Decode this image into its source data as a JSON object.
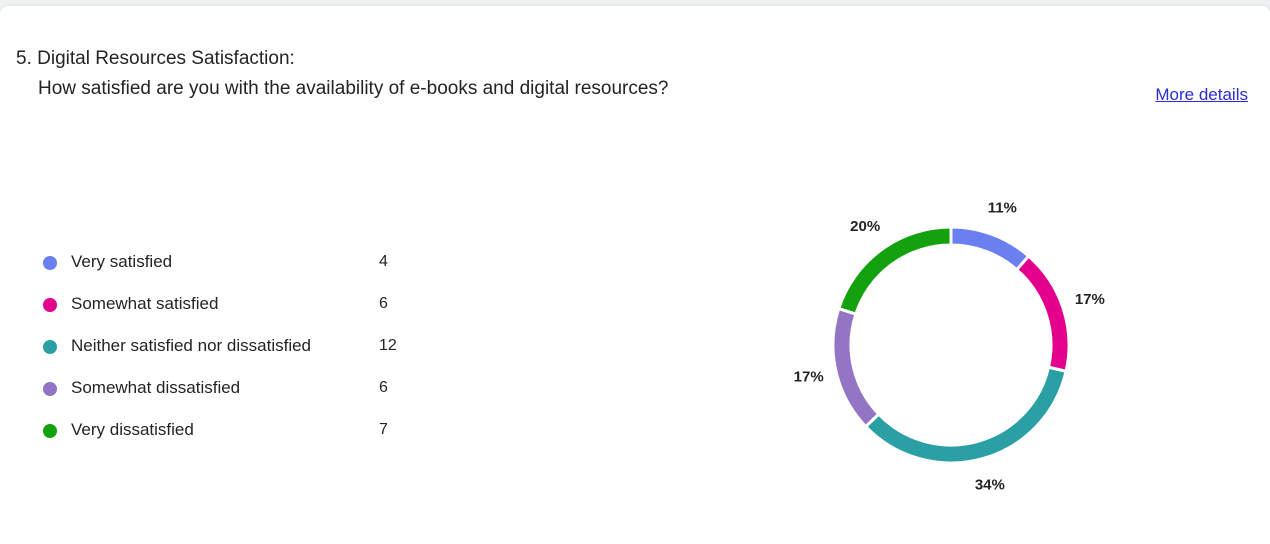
{
  "question": {
    "title": "5. Digital Resources Satisfaction:",
    "subtitle": "How satisfied are you with the availability of e-books and digital resources?",
    "more_details": "More details"
  },
  "chart_data": {
    "type": "pie",
    "donut": true,
    "legend_position": "left",
    "categories": [
      "Very satisfied",
      "Somewhat satisfied",
      "Neither satisfied nor dissatisfied",
      "Somewhat dissatisfied",
      "Very dissatisfied"
    ],
    "values": [
      4,
      6,
      12,
      6,
      7
    ],
    "percent_labels": [
      "11%",
      "17%",
      "34%",
      "17%",
      "20%"
    ],
    "colors": [
      "#6a7ff0",
      "#e3008c",
      "#2aa0a4",
      "#9475c5",
      "#13a10e"
    ]
  }
}
